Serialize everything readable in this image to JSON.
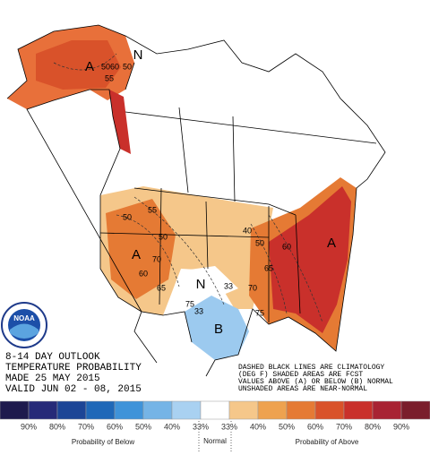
{
  "header": {
    "lines": [
      "8-14 DAY OUTLOOK",
      "TEMPERATURE PROBABILITY",
      "MADE  25 MAY 2015",
      "VALID  JUN 02 - 08, 2015"
    ]
  },
  "notes": [
    "DASHED BLACK LINES ARE CLIMATOLOGY",
    "(DEG F) SHADED AREAS ARE FCST",
    "VALUES ABOVE (A) OR BELOW (B) NORMAL",
    "UNSHADED AREAS ARE NEAR-NORMAL"
  ],
  "map_labels": {
    "anomaly": [
      "A",
      "A",
      "A",
      "B",
      "N",
      "N"
    ],
    "climatology": [
      "50",
      "60",
      "50",
      "55",
      "50",
      "50",
      "55",
      "60",
      "65",
      "70",
      "75",
      "40",
      "50",
      "60",
      "65",
      "70",
      "75",
      "33",
      "33"
    ]
  },
  "logo": "NOAA",
  "legend": {
    "labels": [
      "90%",
      "80%",
      "70%",
      "60%",
      "50%",
      "40%",
      "33%",
      "33%",
      "40%",
      "50%",
      "60%",
      "70%",
      "80%",
      "90%"
    ],
    "colors": [
      "#1e1a4d",
      "#262a78",
      "#1c4596",
      "#1f68b8",
      "#3f93d9",
      "#75b4e6",
      "#a9d1f1",
      "#ffffff",
      "#f5c78a",
      "#eea24f",
      "#e57a34",
      "#d9522a",
      "#c9302b",
      "#a82333",
      "#7a1e2c"
    ],
    "below": "Probability of Below",
    "normal": "Normal",
    "above": "Probability of Above"
  }
}
